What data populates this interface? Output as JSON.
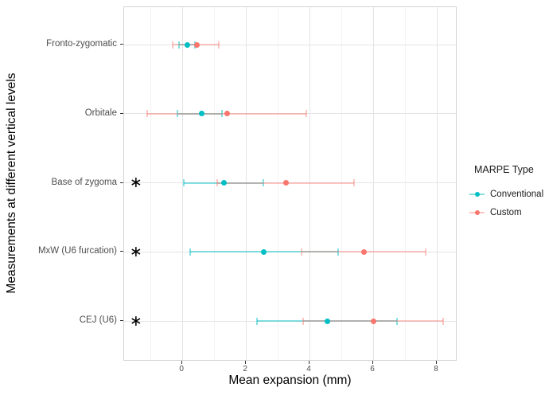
{
  "chart_data": {
    "type": "scatter",
    "subtype": "horizontal-mean-ci-dotplot",
    "title": "",
    "xlabel": "Mean expansion (mm)",
    "ylabel": "Measurements at different vertical levels",
    "categories": [
      "Fronto-zygomatic",
      "Orbitale",
      "Base of zygoma",
      "MxW (U6 furcation)",
      "CEJ (U6)"
    ],
    "significant": [
      false,
      false,
      true,
      true,
      true
    ],
    "significance_marker": "*",
    "series": [
      {
        "name": "Conventional",
        "color": "#00BFC4",
        "ci_color": "rgba(0,191,196,0.48)",
        "means": [
          0.15,
          0.6,
          1.3,
          2.55,
          4.55
        ],
        "ci_low": [
          -0.1,
          -0.15,
          0.05,
          0.25,
          2.35
        ],
        "ci_high": [
          0.4,
          1.25,
          2.55,
          4.9,
          6.75
        ]
      },
      {
        "name": "Custom",
        "color": "#F8766D",
        "ci_color": "rgba(248,118,109,0.42)",
        "means": [
          0.45,
          1.4,
          3.25,
          5.7,
          6.0
        ],
        "ci_low": [
          -0.3,
          -1.1,
          1.1,
          3.75,
          3.8
        ],
        "ci_high": [
          1.15,
          3.9,
          5.4,
          7.65,
          8.2
        ]
      }
    ],
    "x_ticks": [
      0,
      2,
      4,
      6,
      8
    ],
    "x_tick_labels": [
      "0",
      "2",
      "4",
      "6",
      "8"
    ],
    "x_minor_ticks": [
      -1,
      1,
      3,
      5,
      7
    ],
    "xlim": [
      -1.83,
      8.65
    ],
    "grid": true,
    "legend": {
      "title": "MARPE Type",
      "position": "right",
      "entries": [
        "Conventional",
        "Custom"
      ]
    }
  }
}
